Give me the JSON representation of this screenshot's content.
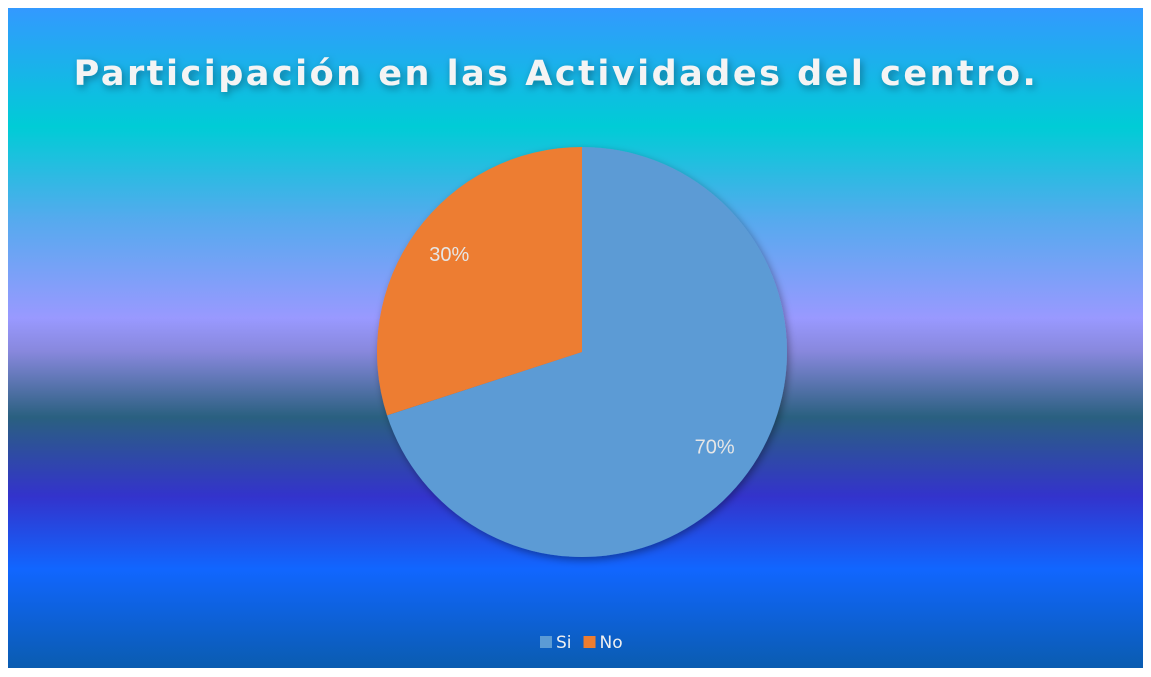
{
  "chart_data": {
    "type": "pie",
    "title": "Participación en las Actividades del centro.",
    "categories": [
      "Si",
      "No"
    ],
    "values": [
      70,
      30
    ],
    "value_labels": [
      "70%",
      "30%"
    ],
    "colors": [
      "#5b9bd5",
      "#ed7d31"
    ],
    "legend": "bottom"
  }
}
